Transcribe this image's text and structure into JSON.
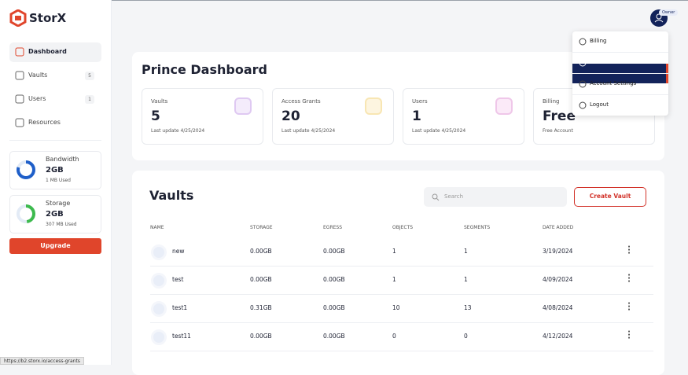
{
  "brand": "StorX",
  "sidebar": {
    "nav": [
      {
        "label": "Dashboard"
      },
      {
        "label": "Vaults",
        "count": 5
      },
      {
        "label": "Users",
        "count": 1
      },
      {
        "label": "Resources"
      }
    ],
    "usage": [
      {
        "label": "Bandwidth",
        "value": "2GB",
        "used": "1 MB Used"
      },
      {
        "label": "Storage",
        "value": "2GB",
        "used": "307 MB Used"
      }
    ],
    "upgrade": "Upgrade"
  },
  "header": {
    "role": "Owner"
  },
  "menu": [
    "Billing",
    "Access",
    "Account Settings",
    "Logout"
  ],
  "dashboard": {
    "title": "Prince Dashboard",
    "cards": [
      {
        "label": "Vaults",
        "value": 5,
        "note": "Last update 4/25/2024"
      },
      {
        "label": "Access Grants",
        "value": 20,
        "note": "Last update 4/25/2024"
      },
      {
        "label": "Users",
        "value": 1,
        "note": "Last update 4/25/2024"
      },
      {
        "label": "Billing",
        "value": "Free",
        "note": "Free Account"
      }
    ]
  },
  "vaults": {
    "title": "Vaults",
    "search": "Search",
    "create": "Create Vault",
    "table": {
      "headers": [
        "NAME",
        "STORAGE",
        "EGRESS",
        "OBJECTS",
        "SEGMENTS",
        "DATE ADDED"
      ],
      "rows": [
        [
          "new",
          "0.00GB",
          "0.00GB",
          1,
          1,
          "3/19/2024"
        ],
        [
          "test",
          "0.00GB",
          "0.00GB",
          1,
          1,
          "4/09/2024"
        ],
        [
          "test1",
          "0.31GB",
          "0.00GB",
          10,
          13,
          "4/08/2024"
        ],
        [
          "test11",
          "0.00GB",
          "0.00GB",
          0,
          0,
          "4/12/2024"
        ]
      ]
    }
  },
  "status_url": "https://b2.storx.io/access-grants"
}
